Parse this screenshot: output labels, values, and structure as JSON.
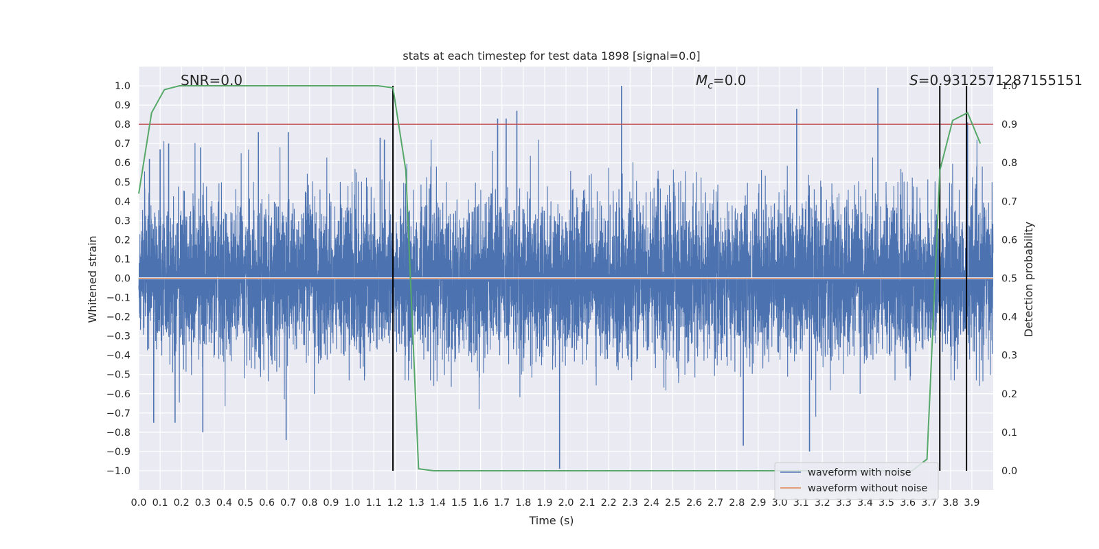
{
  "chart_data": {
    "type": "line",
    "title": "stats at each timestep for test data 1898 [signal=0.0]",
    "xlabel": "Time (s)",
    "ylabel": "Whitened strain",
    "y2label": "Detection probability",
    "xlim": [
      0.0,
      4.0
    ],
    "ylim": [
      -1.1,
      1.1
    ],
    "y2lim": [
      -0.05,
      1.05
    ],
    "xticks": [
      "0.0",
      "0.1",
      "0.2",
      "0.3",
      "0.4",
      "0.5",
      "0.6",
      "0.7",
      "0.8",
      "0.9",
      "1.0",
      "1.1",
      "1.2",
      "1.3",
      "1.4",
      "1.5",
      "1.6",
      "1.7",
      "1.8",
      "1.9",
      "2.0",
      "2.1",
      "2.2",
      "2.3",
      "2.4",
      "2.5",
      "2.6",
      "2.7",
      "2.8",
      "2.9",
      "3.0",
      "3.1",
      "3.2",
      "3.3",
      "3.4",
      "3.5",
      "3.6",
      "3.7",
      "3.8",
      "3.9"
    ],
    "yticks": [
      "1.0",
      "0.9",
      "0.8",
      "0.7",
      "0.6",
      "0.5",
      "0.4",
      "0.3",
      "0.2",
      "0.1",
      "0.0",
      "−0.1",
      "−0.2",
      "−0.3",
      "−0.4",
      "−0.5",
      "−0.6",
      "−0.7",
      "−0.8",
      "−0.9",
      "−1.0"
    ],
    "y2ticks": [
      "1.0",
      "0.9",
      "0.8",
      "0.7",
      "0.6",
      "0.5",
      "0.4",
      "0.3",
      "0.2",
      "0.1",
      "0.0"
    ],
    "grid": true,
    "legend_position": "lower-right",
    "annotations": {
      "snr": "SNR=0.0",
      "mc_symbol": "M",
      "mc_sub": "c",
      "mc_value": "=0.0",
      "s_symbol": "S",
      "s_value": "=0.9312571287155151"
    },
    "threshold": 0.8,
    "detection_boundaries": [
      1.19,
      3.75,
      3.875
    ],
    "series": [
      {
        "name": "waveform with noise",
        "color": "#4c72b0",
        "note_noise": "white-noise strain, 8192 samples over 0–4 s, amplitude roughly within ±1.0",
        "peaks": [
          {
            "t": 0.05,
            "v": 0.62
          },
          {
            "t": 0.07,
            "v": -0.75
          },
          {
            "t": 0.1,
            "v": 0.67
          },
          {
            "t": 0.14,
            "v": 0.7
          },
          {
            "t": 0.17,
            "v": -0.75
          },
          {
            "t": 0.29,
            "v": 0.68
          },
          {
            "t": 0.3,
            "v": -0.8
          },
          {
            "t": 0.56,
            "v": 0.76
          },
          {
            "t": 0.69,
            "v": -0.84
          },
          {
            "t": 0.7,
            "v": 0.76
          },
          {
            "t": 1.13,
            "v": 0.73
          },
          {
            "t": 1.15,
            "v": 0.72
          },
          {
            "t": 1.68,
            "v": 0.83
          },
          {
            "t": 1.72,
            "v": 0.83
          },
          {
            "t": 1.77,
            "v": 0.87
          },
          {
            "t": 1.97,
            "v": -0.99
          },
          {
            "t": 2.26,
            "v": 1.0
          },
          {
            "t": 2.83,
            "v": -0.87
          },
          {
            "t": 3.08,
            "v": 0.88
          },
          {
            "t": 3.14,
            "v": -0.9
          },
          {
            "t": 3.46,
            "v": 0.99
          },
          {
            "t": 3.88,
            "v": 0.81
          }
        ]
      },
      {
        "name": "waveform without noise",
        "color": "#dd8452",
        "y": 0.0
      },
      {
        "name": "detection probability",
        "color": "#55a868",
        "axis": "right",
        "x": [
          0.0,
          0.06,
          0.12,
          0.19,
          0.25,
          0.31,
          0.38,
          0.44,
          0.5,
          0.56,
          0.62,
          0.69,
          0.75,
          0.81,
          0.88,
          0.94,
          1.0,
          1.06,
          1.12,
          1.19,
          1.25,
          1.31,
          1.38,
          1.44,
          1.5,
          1.56,
          1.62,
          1.69,
          1.75,
          1.81,
          1.88,
          1.94,
          2.0,
          2.06,
          2.12,
          2.19,
          2.25,
          2.31,
          2.38,
          2.44,
          2.5,
          2.56,
          2.62,
          2.69,
          2.75,
          2.81,
          2.88,
          2.94,
          3.0,
          3.06,
          3.12,
          3.19,
          3.25,
          3.31,
          3.38,
          3.44,
          3.5,
          3.56,
          3.62,
          3.69,
          3.75,
          3.81,
          3.88,
          3.94
        ],
        "y": [
          0.72,
          0.93,
          0.99,
          1.0,
          1.0,
          1.0,
          1.0,
          1.0,
          1.0,
          1.0,
          1.0,
          1.0,
          1.0,
          1.0,
          1.0,
          1.0,
          1.0,
          1.0,
          1.0,
          0.995,
          0.78,
          0.005,
          0.0,
          0.0,
          0.0,
          0.0,
          0.0,
          0.0,
          0.0,
          0.0,
          0.0,
          0.0,
          0.0,
          0.0,
          0.0,
          0.0,
          0.0,
          0.0,
          0.0,
          0.0,
          0.0,
          0.0,
          0.0,
          0.0,
          0.0,
          0.0,
          0.0,
          0.0,
          0.0,
          0.0,
          0.0,
          0.0,
          0.0,
          0.0,
          0.0,
          0.0,
          0.0,
          0.0,
          0.0,
          0.03,
          0.78,
          0.91,
          0.93,
          0.85
        ]
      }
    ],
    "colors": {
      "background": "#eaeaf2",
      "grid": "#ffffff",
      "threshold_line": "#c44e52",
      "boundary_line": "#000000"
    }
  }
}
